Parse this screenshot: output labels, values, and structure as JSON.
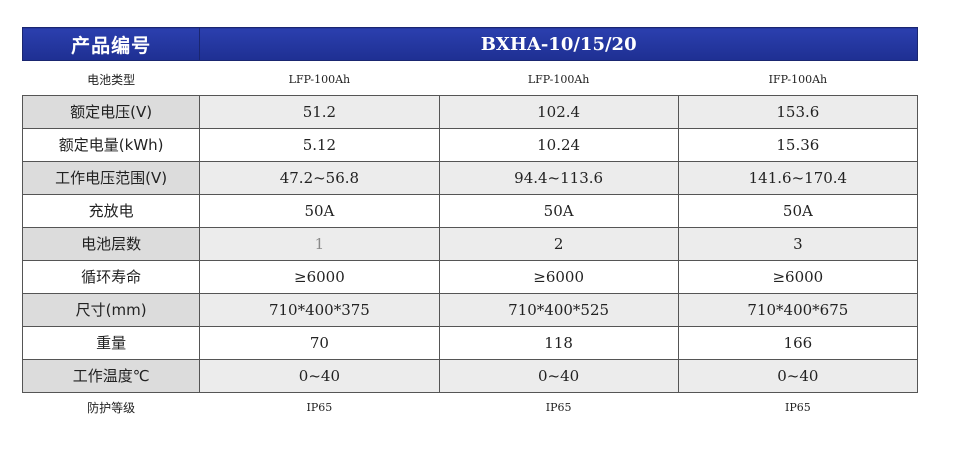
{
  "header": {
    "label": "产品编号",
    "model": "BXHA-10/15/20"
  },
  "rows": [
    {
      "label": "电池类型",
      "values": [
        "LFP-100Ah",
        "LFP-100Ah",
        "IFP-100Ah"
      ],
      "style": "plain"
    },
    {
      "label": "额定电压(V)",
      "values": [
        "51.2",
        "102.4",
        "153.6"
      ],
      "style": "shade"
    },
    {
      "label": "额定电量(kWh)",
      "values": [
        "5.12",
        "10.24",
        "15.36"
      ],
      "style": "white"
    },
    {
      "label": "工作电压范围(V)",
      "values": [
        "47.2~56.8",
        "94.4~113.6",
        "141.6~170.4"
      ],
      "style": "shade"
    },
    {
      "label": "充放电",
      "values": [
        "50A",
        "50A",
        "50A"
      ],
      "style": "white"
    },
    {
      "label": "电池层数",
      "values": [
        "1",
        "2",
        "3"
      ],
      "style": "shade"
    },
    {
      "label": "循环寿命",
      "values": [
        "≥6000",
        "≥6000",
        "≥6000"
      ],
      "style": "white"
    },
    {
      "label": "尺寸(mm)",
      "values": [
        "710*400*375",
        "710*400*525",
        "710*400*675"
      ],
      "style": "shade"
    },
    {
      "label": "重量",
      "values": [
        "70",
        "118",
        "166"
      ],
      "style": "white"
    },
    {
      "label": "工作温度℃",
      "values": [
        "0~40",
        "0~40",
        "0~40"
      ],
      "style": "shade"
    },
    {
      "label": "防护等级",
      "values": [
        "IP65",
        "IP65",
        "IP65"
      ],
      "style": "plain"
    }
  ]
}
